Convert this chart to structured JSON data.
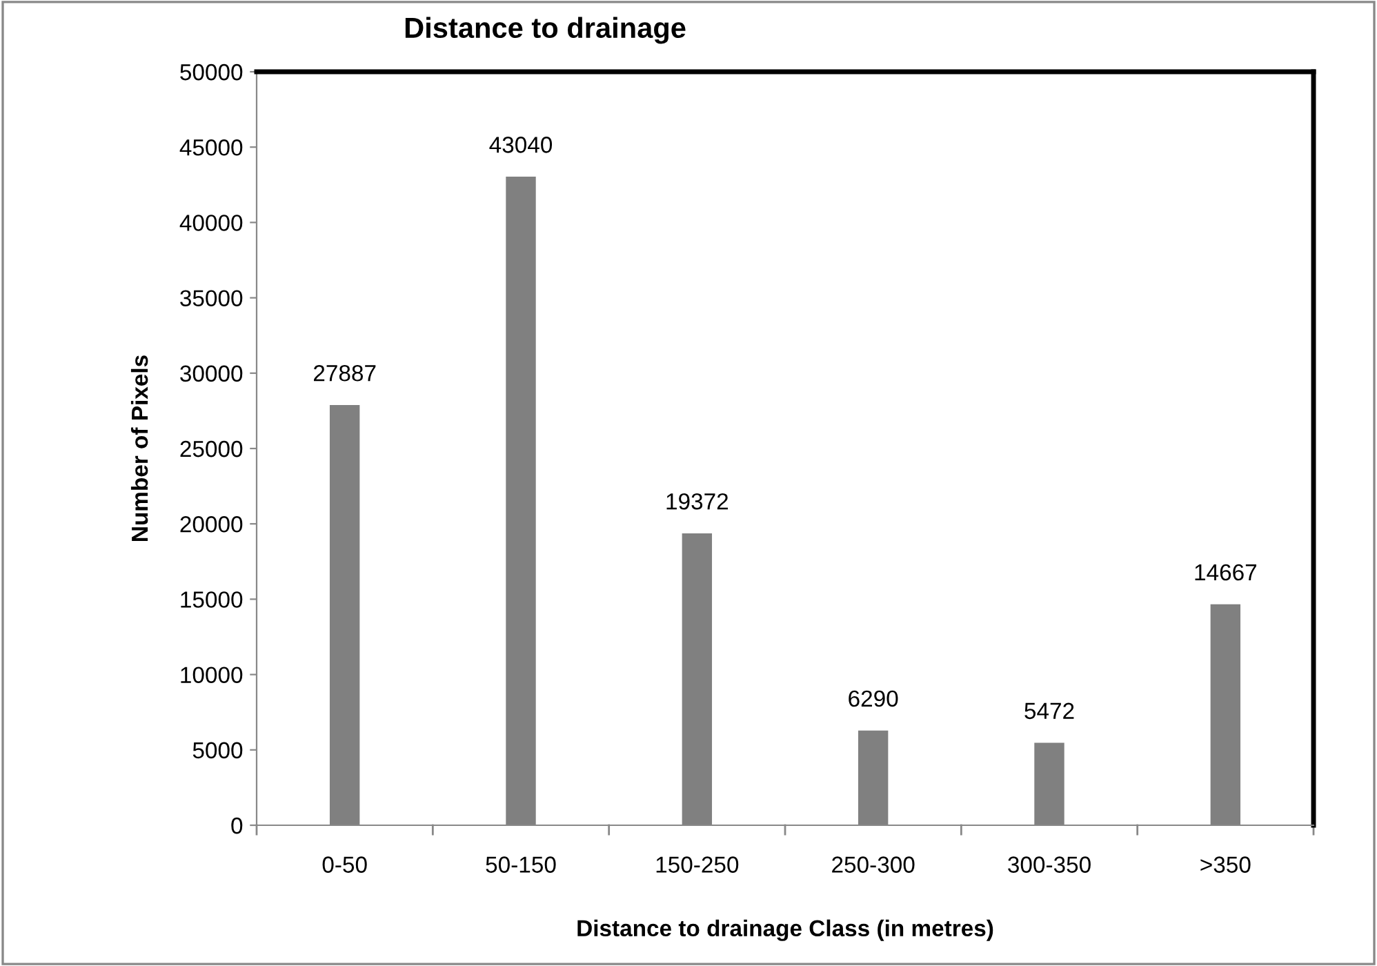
{
  "chart_data": {
    "type": "bar",
    "title": "Distance to drainage",
    "xlabel": "Distance to drainage Class (in metres)",
    "ylabel": "Number of Pixels",
    "categories": [
      "0-50",
      "50-150",
      "150-250",
      "250-300",
      "300-350",
      ">350"
    ],
    "values": [
      27887,
      43040,
      19372,
      6290,
      5472,
      14667
    ],
    "color": "#808080",
    "ylim": [
      0,
      50000
    ],
    "yticks": [
      0,
      5000,
      10000,
      15000,
      20000,
      25000,
      30000,
      35000,
      40000,
      45000,
      50000
    ],
    "grid": false,
    "data_labels": true,
    "legend": false
  }
}
